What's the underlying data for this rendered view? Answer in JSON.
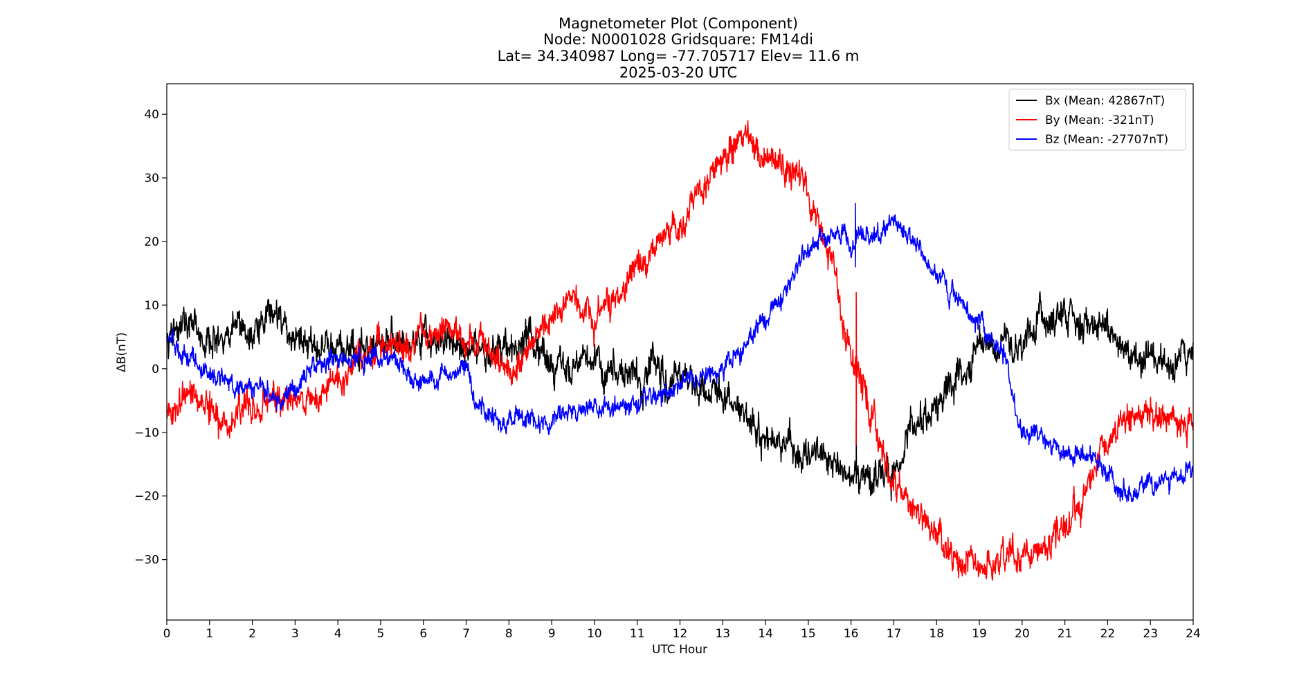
{
  "chart_data": {
    "type": "line",
    "title_lines": [
      "Magnetometer Plot (Component)",
      "Node:  N0001028     Gridsquare:  FM14di",
      "Lat= 34.340987    Long= -77.705717    Elev= 11.6 m",
      "2025-03-20  UTC"
    ],
    "xlabel": "UTC Hour",
    "ylabel": "ΔB(nT)",
    "xlim": [
      0,
      24
    ],
    "ylim": [
      -39.5,
      44.8
    ],
    "xticks": [
      0,
      1,
      2,
      3,
      4,
      5,
      6,
      7,
      8,
      9,
      10,
      11,
      12,
      13,
      14,
      15,
      16,
      17,
      18,
      19,
      20,
      21,
      22,
      23,
      24
    ],
    "yticks": [
      -30,
      -20,
      -10,
      0,
      10,
      20,
      30,
      40
    ],
    "ytick_labels": [
      "−30",
      "−20",
      "−10",
      "0",
      "10",
      "20",
      "30",
      "40"
    ],
    "grid": false,
    "legend_position": "top-right",
    "series": [
      {
        "name": "Bx (Mean: 42867nT)",
        "color": "#000000",
        "noise": 2.2,
        "points": [
          [
            0,
            5
          ],
          [
            0.5,
            7
          ],
          [
            1,
            4
          ],
          [
            1.5,
            6
          ],
          [
            2,
            5
          ],
          [
            2.5,
            9
          ],
          [
            3,
            5
          ],
          [
            3.5,
            3
          ],
          [
            4,
            3
          ],
          [
            4.5,
            3
          ],
          [
            5,
            4
          ],
          [
            5.5,
            5
          ],
          [
            6,
            4
          ],
          [
            6.5,
            4
          ],
          [
            7,
            3
          ],
          [
            7.5,
            2
          ],
          [
            8,
            4
          ],
          [
            8.5,
            4
          ],
          [
            9,
            1
          ],
          [
            9.5,
            0
          ],
          [
            10,
            1
          ],
          [
            10.5,
            -1
          ],
          [
            11,
            -2
          ],
          [
            11.4,
            0
          ],
          [
            11.6,
            -1
          ],
          [
            12,
            -1
          ],
          [
            12.5,
            -3
          ],
          [
            13,
            -4
          ],
          [
            13.5,
            -8
          ],
          [
            14,
            -10
          ],
          [
            14.5,
            -12
          ],
          [
            15,
            -14
          ],
          [
            15.5,
            -14
          ],
          [
            15.9,
            -17
          ],
          [
            16,
            -17
          ],
          [
            16.5,
            -17
          ],
          [
            17,
            -16
          ],
          [
            17.5,
            -9
          ],
          [
            18,
            -6
          ],
          [
            18.5,
            -1
          ],
          [
            19,
            3
          ],
          [
            19.5,
            4
          ],
          [
            20,
            3
          ],
          [
            20.5,
            8
          ],
          [
            21,
            8
          ],
          [
            21.5,
            8
          ],
          [
            22,
            6
          ],
          [
            22.5,
            3
          ],
          [
            23,
            1
          ],
          [
            23.5,
            1
          ],
          [
            24,
            2
          ]
        ]
      },
      {
        "name": "By (Mean: -321nT)",
        "color": "#ff0000",
        "noise": 2.0,
        "points": [
          [
            0,
            -7
          ],
          [
            0.5,
            -4
          ],
          [
            1,
            -6
          ],
          [
            1.4,
            -9
          ],
          [
            2,
            -6
          ],
          [
            2.5,
            -4
          ],
          [
            3,
            -5
          ],
          [
            3.5,
            -4
          ],
          [
            4,
            -3
          ],
          [
            4.5,
            2
          ],
          [
            5,
            3
          ],
          [
            5.5,
            3
          ],
          [
            6,
            6
          ],
          [
            6.5,
            6
          ],
          [
            7,
            6
          ],
          [
            7.5,
            3
          ],
          [
            7.8,
            0
          ],
          [
            8,
            0
          ],
          [
            8.5,
            4
          ],
          [
            9,
            9
          ],
          [
            9.5,
            10
          ],
          [
            10,
            9
          ],
          [
            10.5,
            11
          ],
          [
            11,
            16
          ],
          [
            11.5,
            19
          ],
          [
            12,
            23
          ],
          [
            12.5,
            27
          ],
          [
            13,
            33
          ],
          [
            13.3,
            35
          ],
          [
            13.5,
            37
          ],
          [
            14,
            33
          ],
          [
            14.5,
            32
          ],
          [
            14.8,
            30
          ],
          [
            15,
            26
          ],
          [
            15.2,
            22
          ],
          [
            15.5,
            17
          ],
          [
            16,
            3
          ],
          [
            16.5,
            -8
          ],
          [
            17,
            -18
          ],
          [
            17.5,
            -22
          ],
          [
            18,
            -26
          ],
          [
            18.5,
            -31
          ],
          [
            19,
            -31
          ],
          [
            19.5,
            -30
          ],
          [
            20,
            -30
          ],
          [
            20.5,
            -29
          ],
          [
            21,
            -26
          ],
          [
            21.3,
            -22
          ],
          [
            21.5,
            -18
          ],
          [
            22,
            -11
          ],
          [
            22.5,
            -8
          ],
          [
            23,
            -7
          ],
          [
            23.5,
            -8
          ],
          [
            24,
            -9
          ]
        ]
      },
      {
        "name": "Bz (Mean: -27707nT)",
        "color": "#0000ff",
        "noise": 1.3,
        "points": [
          [
            0,
            5
          ],
          [
            0.5,
            2
          ],
          [
            1,
            -1
          ],
          [
            1.5,
            -2
          ],
          [
            2,
            -3
          ],
          [
            2.5,
            -4
          ],
          [
            3,
            -3
          ],
          [
            3.5,
            1
          ],
          [
            4,
            2
          ],
          [
            4.5,
            1
          ],
          [
            5,
            2
          ],
          [
            5.5,
            0
          ],
          [
            6,
            -2
          ],
          [
            6.5,
            -1
          ],
          [
            7,
            0
          ],
          [
            7.3,
            -7
          ],
          [
            7.5,
            -8
          ],
          [
            8,
            -8
          ],
          [
            8.5,
            -8
          ],
          [
            9,
            -8
          ],
          [
            9.5,
            -6
          ],
          [
            10,
            -6
          ],
          [
            10.5,
            -6
          ],
          [
            11,
            -5
          ],
          [
            11.5,
            -4
          ],
          [
            12,
            -2
          ],
          [
            12.5,
            -1
          ],
          [
            13,
            0
          ],
          [
            13.5,
            4
          ],
          [
            14,
            8
          ],
          [
            14.5,
            13
          ],
          [
            15,
            19
          ],
          [
            15.5,
            21
          ],
          [
            16,
            20
          ],
          [
            16.5,
            21
          ],
          [
            17,
            23
          ],
          [
            17.5,
            20
          ],
          [
            18,
            15
          ],
          [
            18.5,
            11
          ],
          [
            19,
            7
          ],
          [
            19.5,
            3
          ],
          [
            20,
            -10
          ],
          [
            20.5,
            -11
          ],
          [
            21,
            -13
          ],
          [
            21.5,
            -13
          ],
          [
            22,
            -16
          ],
          [
            22.3,
            -20
          ],
          [
            22.5,
            -20
          ],
          [
            23,
            -18
          ],
          [
            23.5,
            -17
          ],
          [
            24,
            -16
          ]
        ]
      }
    ],
    "spikes": [
      {
        "series": 1,
        "x": 16.12,
        "values": [
          12,
          -12
        ]
      },
      {
        "series": 0,
        "x": 16.12,
        "values": [
          -8,
          -18
        ]
      },
      {
        "series": 2,
        "x": 16.1,
        "values": [
          26,
          16
        ]
      }
    ]
  }
}
